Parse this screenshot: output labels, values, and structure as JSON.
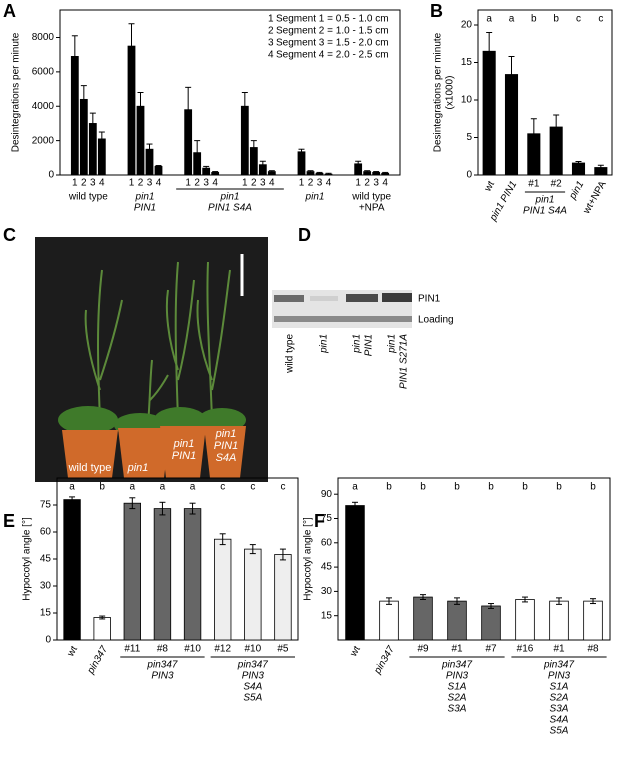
{
  "panel_letters": [
    "A",
    "B",
    "C",
    "D",
    "E",
    "F"
  ],
  "chart_data": [
    {
      "type": "grouped_bar",
      "y_label": [
        "Desintegrations per minute"
      ],
      "ylim": [
        0,
        9600
      ],
      "yticks": [
        0,
        2000,
        4000,
        6000,
        8000
      ],
      "categories": [
        [
          "wild type"
        ],
        [
          "pin1",
          "PIN1"
        ],
        [
          "pin1",
          "PIN1 S4A"
        ],
        [
          "pin1",
          "PIN1 S4A"
        ],
        [
          "pin1"
        ],
        [
          "wild type",
          "+NPA"
        ]
      ],
      "category_italic": [
        false,
        true,
        true,
        true,
        true,
        false
      ],
      "series": [
        {
          "label": "1",
          "name": "Segment 1 = 0.5 - 1.0 cm",
          "color": "#000000",
          "values": [
            6900,
            7500,
            3800,
            4000,
            1350,
            650
          ],
          "errors": [
            1200,
            1300,
            1300,
            800,
            150,
            150
          ]
        },
        {
          "label": "2",
          "name": "Segment 2 = 1.0 - 1.5 cm",
          "color": "#000000",
          "values": [
            4400,
            4000,
            1300,
            1600,
            200,
            200
          ],
          "errors": [
            800,
            800,
            700,
            400,
            50,
            50
          ]
        },
        {
          "label": "3",
          "name": "Segment 3 = 1.5 - 2.0 cm",
          "color": "#000000",
          "values": [
            3000,
            1500,
            400,
            600,
            100,
            150
          ],
          "errors": [
            600,
            300,
            100,
            200,
            50,
            50
          ]
        },
        {
          "label": "4",
          "name": "Segment 4 = 2.0 - 2.5 cm",
          "color": "#000000",
          "values": [
            2100,
            500,
            150,
            200,
            50,
            100
          ],
          "errors": [
            400,
            50,
            50,
            50,
            50,
            50
          ]
        }
      ]
    },
    {
      "type": "bar",
      "y_label": [
        "Desintegrations per minute",
        "(x1000)"
      ],
      "ylim": [
        0,
        22
      ],
      "yticks": [
        0,
        5,
        10,
        15,
        20
      ],
      "categories": [
        "wt",
        "pin1 PIN1",
        "#1",
        "#2",
        "pin1",
        "wt+NPA"
      ],
      "category_italic": [
        false,
        true,
        false,
        false,
        true,
        false
      ],
      "groups": [
        null,
        null,
        [
          "pin1",
          "PIN1 S4A"
        ],
        [
          "pin1",
          "PIN1 S4A"
        ],
        null,
        null
      ],
      "values": [
        16.5,
        13.4,
        5.5,
        6.4,
        1.6,
        1.0
      ],
      "errors": [
        2.5,
        2.4,
        2.0,
        1.6,
        0.2,
        0.3
      ],
      "colors": [
        "#000000",
        "#000000",
        "#000000",
        "#000000",
        "#000000",
        "#000000"
      ],
      "letters": [
        "a",
        "a",
        "b",
        "b",
        "c",
        "c"
      ]
    },
    {
      "type": "bar",
      "y_label": [
        "Hypocotyl angle [°]"
      ],
      "ylim": [
        0,
        90
      ],
      "yticks": [
        0,
        15,
        30,
        45,
        60,
        75
      ],
      "categories": [
        "wt",
        "pin347",
        "#11",
        "#8",
        "#10",
        "#12",
        "#10",
        "#5"
      ],
      "category_italic": [
        false,
        true,
        false,
        false,
        false,
        false,
        false,
        false
      ],
      "groups": [
        null,
        null,
        [
          "pin347",
          "PIN3"
        ],
        [
          "pin347",
          "PIN3"
        ],
        [
          "pin347",
          "PIN3"
        ],
        [
          "pin347",
          "PIN3",
          "S4A",
          "S5A"
        ],
        [
          "pin347",
          "PIN3",
          "S4A",
          "S5A"
        ],
        [
          "pin347",
          "PIN3",
          "S4A",
          "S5A"
        ]
      ],
      "values": [
        78,
        12.5,
        76,
        73,
        73,
        56,
        50.5,
        47.5
      ],
      "errors": [
        1.5,
        0.8,
        3,
        3.5,
        3,
        3,
        2.5,
        3
      ],
      "colors": [
        "#000000",
        "#ffffff",
        "#666666",
        "#666666",
        "#666666",
        "#eeeeee",
        "#eeeeee",
        "#eeeeee"
      ],
      "letters": [
        "a",
        "b",
        "a",
        "a",
        "a",
        "c",
        "c",
        "c"
      ]
    },
    {
      "type": "bar",
      "y_label": [
        "Hypocotyl angle [°]"
      ],
      "ylim": [
        0,
        100
      ],
      "yticks": [
        15,
        30,
        45,
        60,
        75,
        90
      ],
      "categories": [
        "wt",
        "pin347",
        "#9",
        "#1",
        "#7",
        "#16",
        "#1",
        "#8"
      ],
      "category_italic": [
        false,
        true,
        false,
        false,
        false,
        false,
        false,
        false
      ],
      "groups": [
        null,
        null,
        [
          "pin347",
          "PIN3",
          "S1A",
          "S2A",
          "S3A"
        ],
        [
          "pin347",
          "PIN3",
          "S1A",
          "S2A",
          "S3A"
        ],
        [
          "pin347",
          "PIN3",
          "S1A",
          "S2A",
          "S3A"
        ],
        [
          "pin347",
          "PIN3",
          "S1A",
          "S2A",
          "S3A",
          "S4A",
          "S5A"
        ],
        [
          "pin347",
          "PIN3",
          "S1A",
          "S2A",
          "S3A",
          "S4A",
          "S5A"
        ],
        [
          "pin347",
          "PIN3",
          "S1A",
          "S2A",
          "S3A",
          "S4A",
          "S5A"
        ]
      ],
      "values": [
        83,
        24,
        26.5,
        24,
        21,
        25,
        24,
        24
      ],
      "errors": [
        2,
        2,
        1.5,
        2,
        1.5,
        1.5,
        2,
        1.5
      ],
      "colors": [
        "#000000",
        "#ffffff",
        "#666666",
        "#666666",
        "#666666",
        "#ffffff",
        "#ffffff",
        "#ffffff"
      ],
      "letters": [
        "a",
        "b",
        "b",
        "b",
        "b",
        "b",
        "b",
        "b"
      ]
    }
  ],
  "photo": {
    "plant_labels": [
      [
        "wild type"
      ],
      [
        "pin1"
      ],
      [
        "pin1",
        "PIN1"
      ],
      [
        "pin1",
        "PIN1",
        "S4A"
      ]
    ]
  },
  "blot": {
    "bands": [
      "PIN1",
      "Loading"
    ],
    "lanes": [
      [
        "wild type"
      ],
      [
        "pin1"
      ],
      [
        "pin1",
        "PIN1"
      ],
      [
        "pin1",
        "PIN1 S271A"
      ]
    ]
  }
}
